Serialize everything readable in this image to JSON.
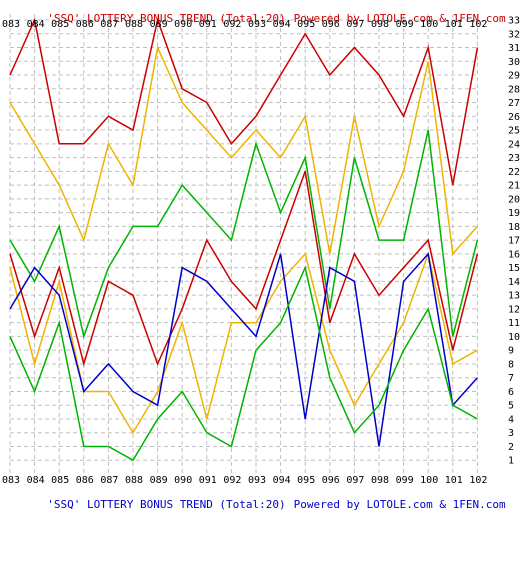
{
  "header": {
    "title": "'SSQ' LOTTERY BONUS TREND (Total:20)",
    "powered": "Powered by LOTOLE.com & 1FEN.com",
    "color": "#c80000"
  },
  "footer": {
    "title": "'SSQ' LOTTERY BONUS TREND (Total:20)",
    "powered": "Powered by LOTOLE.com & 1FEN.com",
    "color": "#0000c8"
  },
  "chart_data": {
    "type": "line",
    "x": [
      "083",
      "084",
      "085",
      "086",
      "087",
      "088",
      "089",
      "090",
      "091",
      "092",
      "093",
      "094",
      "095",
      "096",
      "097",
      "098",
      "099",
      "100",
      "101",
      "102"
    ],
    "ylim": [
      0,
      33
    ],
    "yticks": [
      1,
      2,
      3,
      4,
      5,
      6,
      7,
      8,
      9,
      10,
      11,
      12,
      13,
      14,
      15,
      16,
      17,
      18,
      19,
      20,
      21,
      22,
      23,
      24,
      25,
      26,
      27,
      28,
      29,
      30,
      31,
      32,
      33
    ],
    "grid": true,
    "grid_color": "#c0c0c0",
    "series": [
      {
        "color": "#cc0000",
        "values": [
          29,
          33,
          24,
          24,
          26,
          25,
          33,
          28,
          27,
          24,
          26,
          29,
          32,
          29,
          31,
          29,
          26,
          31,
          21,
          31
        ]
      },
      {
        "color": "#f0b400",
        "values": [
          27,
          24,
          21,
          17,
          24,
          21,
          31,
          27,
          25,
          23,
          25,
          23,
          26,
          16,
          26,
          18,
          22,
          30,
          16,
          18
        ]
      },
      {
        "color": "#00b400",
        "values": [
          17,
          14,
          18,
          10,
          15,
          18,
          18,
          21,
          19,
          17,
          24,
          19,
          23,
          12,
          23,
          17,
          17,
          25,
          10,
          17
        ]
      },
      {
        "color": "#cc0000",
        "values": [
          16,
          10,
          15,
          8,
          14,
          13,
          8,
          12,
          17,
          14,
          12,
          17,
          22,
          11,
          16,
          13,
          15,
          17,
          9,
          16
        ]
      },
      {
        "color": "#f0b400",
        "values": [
          15,
          8,
          14,
          6,
          6,
          3,
          6,
          11,
          4,
          11,
          11,
          14,
          16,
          9,
          5,
          8,
          11,
          16,
          8,
          9
        ]
      },
      {
        "color": "#0000cc",
        "values": [
          12,
          15,
          13,
          6,
          8,
          6,
          5,
          15,
          14,
          12,
          10,
          16,
          4,
          15,
          14,
          2,
          14,
          16,
          5,
          7
        ]
      },
      {
        "color": "#00b400",
        "values": [
          10,
          6,
          11,
          2,
          2,
          1,
          4,
          6,
          3,
          2,
          9,
          11,
          15,
          7,
          3,
          5,
          9,
          12,
          5,
          4
        ]
      }
    ]
  }
}
